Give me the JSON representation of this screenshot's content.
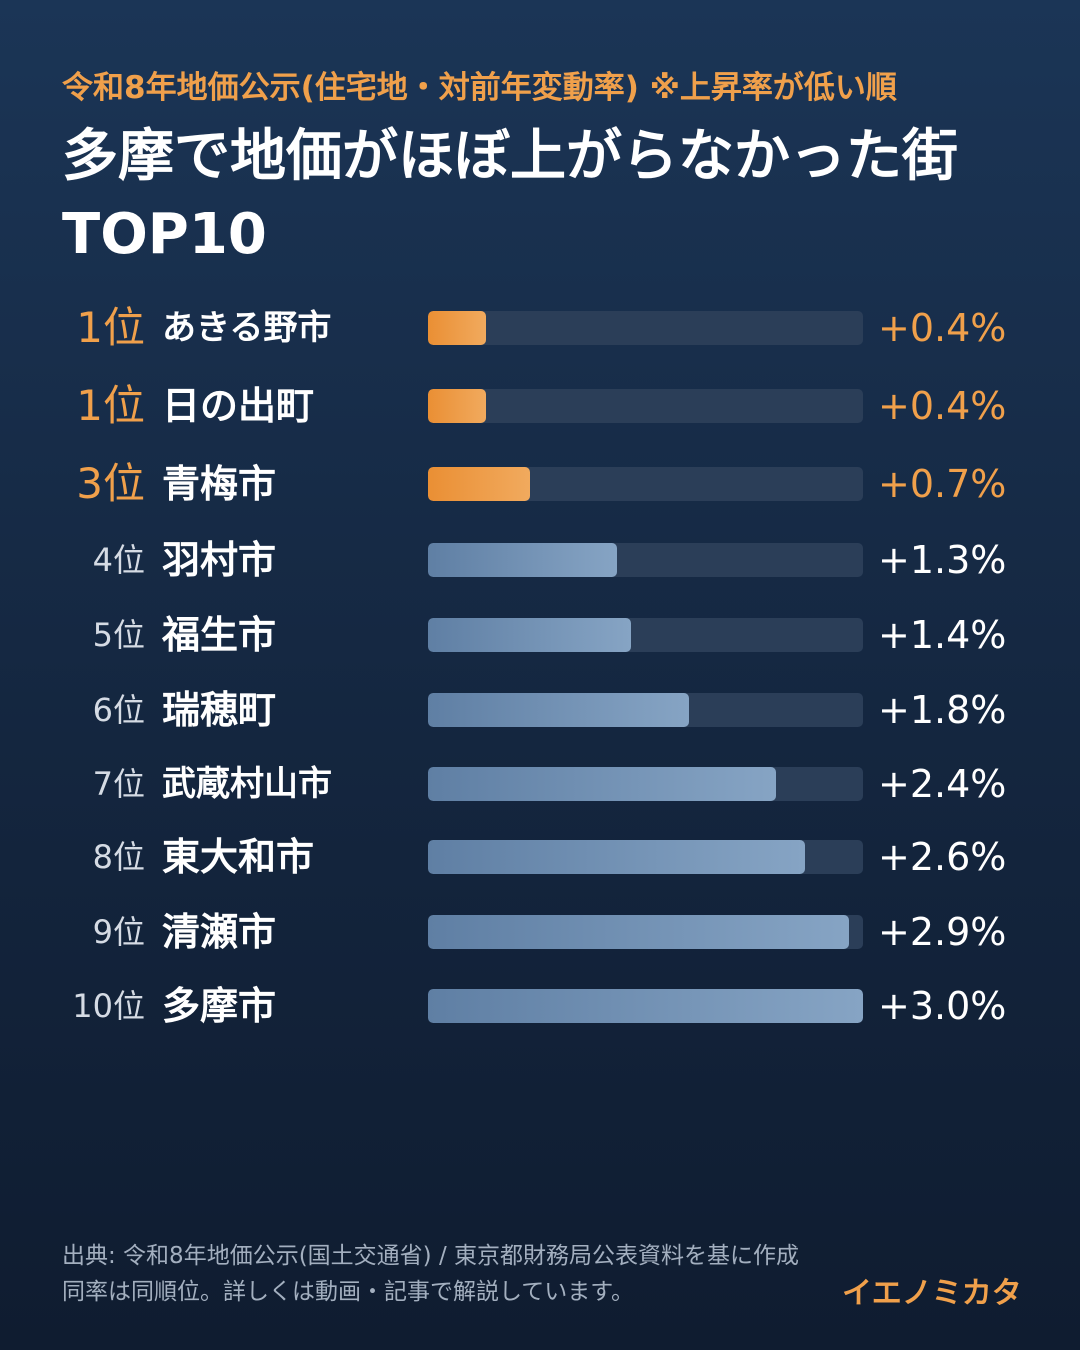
{
  "header": {
    "subtitle": "令和8年地価公示(住宅地・対前年変動率) ※上昇率が低い順",
    "title": "多摩で地価がほぼ上がらなかった街TOP10"
  },
  "colors": {
    "accent": "#f0a04b",
    "bar_highlight": "#ea8f34",
    "bar_normal": "#6f8fb4",
    "track": "#2b3e58",
    "background": "#1b3556"
  },
  "chart_data": {
    "type": "bar",
    "orientation": "horizontal",
    "title": "多摩で地価がほぼ上がらなかった街TOP10",
    "subtitle": "令和8年地価公示(住宅地・対前年変動率) ※上昇率が低い順",
    "xlim": [
      0,
      3.0
    ],
    "unit": "%",
    "highlight_top": 3,
    "rows": [
      {
        "rank": "1位",
        "city": "あきる野市",
        "value": 0.4,
        "label": "+0.4%"
      },
      {
        "rank": "1位",
        "city": "日の出町",
        "value": 0.4,
        "label": "+0.4%"
      },
      {
        "rank": "3位",
        "city": "青梅市",
        "value": 0.7,
        "label": "+0.7%"
      },
      {
        "rank": "4位",
        "city": "羽村市",
        "value": 1.3,
        "label": "+1.3%"
      },
      {
        "rank": "5位",
        "city": "福生市",
        "value": 1.4,
        "label": "+1.4%"
      },
      {
        "rank": "6位",
        "city": "瑞穂町",
        "value": 1.8,
        "label": "+1.8%"
      },
      {
        "rank": "7位",
        "city": "武蔵村山市",
        "value": 2.4,
        "label": "+2.4%"
      },
      {
        "rank": "8位",
        "city": "東大和市",
        "value": 2.6,
        "label": "+2.6%"
      },
      {
        "rank": "9位",
        "city": "清瀬市",
        "value": 2.9,
        "label": "+2.9%"
      },
      {
        "rank": "10位",
        "city": "多摩市",
        "value": 3.0,
        "label": "+3.0%"
      }
    ]
  },
  "footer": {
    "source": "出典: 令和8年地価公示(国土交通省) / 東京都財務局公表資料を基に作成",
    "note": "同率は同順位。詳しくは動画・記事で解説しています。",
    "brand": "イエノミカタ"
  }
}
